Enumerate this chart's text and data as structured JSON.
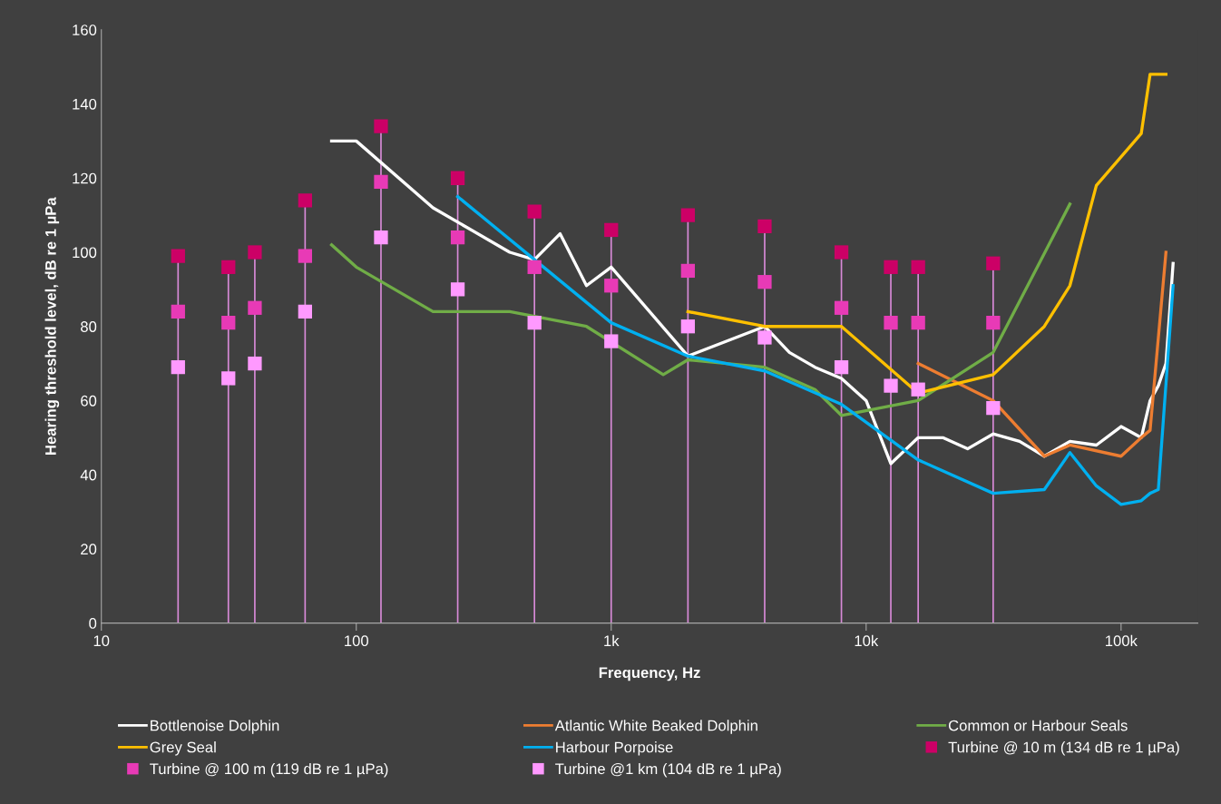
{
  "chart_data": {
    "type": "line",
    "xlabel": "Frequency, Hz",
    "ylabel": "Hearing threshold level, dB re 1 µPa",
    "log": "x",
    "xlim": [
      10,
      200000
    ],
    "xticks": [
      10,
      100,
      {
        "value": 1000,
        "label": "1k"
      },
      {
        "value": 10000,
        "label": "10k"
      },
      {
        "value": 100000,
        "label": "100k"
      }
    ],
    "ylim": [
      0,
      160
    ],
    "yticks": [
      0,
      20,
      40,
      60,
      80,
      100,
      120,
      140,
      160
    ],
    "grid": false,
    "legend": "bottom",
    "line_style": "solid",
    "series": [
      {
        "name": "Bottlenoise Dolphin",
        "color": "#ffffff",
        "x": [
          80,
          100,
          200,
          400,
          500,
          630,
          800,
          1000,
          2000,
          4000,
          5000,
          6300,
          8000,
          10000,
          12500,
          16000,
          20000,
          25000,
          31500,
          40000,
          50000,
          63000,
          80000,
          100000,
          120000,
          130000,
          140000,
          150000,
          160000
        ],
        "values": [
          130,
          130,
          112,
          100,
          98,
          105,
          91,
          96,
          72,
          80,
          73,
          69,
          66,
          60,
          43,
          50,
          50,
          47,
          51,
          49,
          45,
          49,
          48,
          53,
          50,
          60,
          64,
          70,
          97
        ]
      },
      {
        "name": "Atlantic White Beaked Dolphin",
        "color": "#ed7d31",
        "x": [
          16000,
          31500,
          50000,
          63000,
          100000,
          120000,
          130000,
          150000
        ],
        "values": [
          70,
          60,
          45,
          48,
          45,
          50,
          52,
          100
        ]
      },
      {
        "name": "Common or Harbour Seals",
        "color": "#70ad47",
        "x": [
          80,
          100,
          200,
          400,
          800,
          1600,
          2000,
          4000,
          6300,
          8000,
          16000,
          31500,
          63000
        ],
        "values": [
          102,
          96,
          84,
          84,
          80,
          67,
          71,
          69,
          63,
          56,
          60,
          73,
          113
        ]
      },
      {
        "name": "Grey Seal",
        "color": "#ffc000",
        "x": [
          2000,
          4000,
          8000,
          16000,
          31500,
          50000,
          63000,
          80000,
          120000,
          130000,
          150000
        ],
        "values": [
          84,
          80,
          80,
          62,
          67,
          80,
          91,
          118,
          132,
          148,
          148
        ]
      },
      {
        "name": "Harbour Porpoise",
        "color": "#00b0f0",
        "x": [
          250,
          500,
          1000,
          2000,
          4000,
          8000,
          16000,
          31500,
          50000,
          63000,
          80000,
          100000,
          120000,
          130000,
          140000,
          160000
        ],
        "values": [
          115,
          98,
          81,
          72,
          68,
          59,
          44,
          35,
          36,
          46,
          37,
          32,
          33,
          35,
          36,
          91
        ]
      },
      {
        "name": "Turbine @ 10 m (134 dB re 1 µPa)",
        "type": "scatter",
        "marker": "square",
        "color": "#cc0066",
        "x": [
          20,
          31.5,
          40,
          63,
          125,
          250,
          500,
          1000,
          2000,
          4000,
          8000,
          12500,
          16000,
          31500
        ],
        "values": [
          99,
          96,
          100,
          114,
          134,
          120,
          111,
          106,
          110,
          107,
          100,
          96,
          96,
          97
        ],
        "errors": [
          [
            0,
            99
          ],
          [
            0,
            96
          ],
          [
            0,
            100
          ],
          [
            0,
            114
          ],
          [
            0,
            134
          ],
          [
            0,
            120
          ],
          [
            0,
            111
          ],
          [
            0,
            106
          ],
          [
            0,
            110
          ],
          [
            0,
            107
          ],
          [
            0,
            100
          ],
          [
            0,
            96
          ],
          [
            0,
            96
          ],
          [
            0,
            97
          ]
        ]
      },
      {
        "name": "Turbine @ 100 m (119 dB re 1 µPa)",
        "type": "scatter",
        "marker": "square",
        "color": "#e83ab6",
        "x": [
          20,
          31.5,
          40,
          63,
          125,
          250,
          500,
          1000,
          2000,
          4000,
          8000,
          12500,
          16000,
          31500
        ],
        "values": [
          84,
          81,
          85,
          99,
          119,
          104,
          96,
          91,
          95,
          92,
          85,
          81,
          81,
          81
        ]
      },
      {
        "name": "Turbine @1 km (104 dB re 1 µPa)",
        "type": "scatter",
        "marker": "square",
        "color": "#ff99ff",
        "x": [
          20,
          31.5,
          40,
          63,
          125,
          250,
          500,
          1000,
          2000,
          4000,
          8000,
          12500,
          16000,
          31500
        ],
        "values": [
          69,
          66,
          70,
          84,
          104,
          90,
          81,
          76,
          80,
          77,
          69,
          64,
          63,
          58
        ]
      }
    ]
  }
}
